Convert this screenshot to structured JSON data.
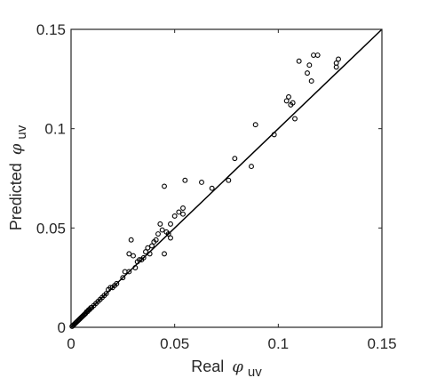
{
  "chart_data": {
    "type": "scatter",
    "title": "",
    "xlabel": {
      "prefix": "Real",
      "symbol": "φ",
      "subscript": "uv"
    },
    "ylabel": {
      "prefix": "Predicted",
      "symbol": "φ",
      "subscript": "uv"
    },
    "xlim": [
      0,
      0.15
    ],
    "ylim": [
      0,
      0.15
    ],
    "xticks": [
      0,
      0.05,
      0.1,
      0.15
    ],
    "yticks": [
      0,
      0.05,
      0.1,
      0.15
    ],
    "xtick_labels": [
      "0",
      "0.05",
      "0.1",
      "0.15"
    ],
    "ytick_labels": [
      "0",
      "0.05",
      "0.1",
      "0.15"
    ],
    "grid": false,
    "marker": "open-circle",
    "reference_line": {
      "from": [
        0,
        0
      ],
      "to": [
        0.15,
        0.15
      ]
    },
    "series": [
      {
        "points": [
          [
            0.0005,
            0.0005
          ],
          [
            0.001,
            0.001
          ],
          [
            0.0015,
            0.0015
          ],
          [
            0.002,
            0.002
          ],
          [
            0.0025,
            0.0025
          ],
          [
            0.003,
            0.003
          ],
          [
            0.0035,
            0.0035
          ],
          [
            0.004,
            0.004
          ],
          [
            0.0045,
            0.0045
          ],
          [
            0.005,
            0.005
          ],
          [
            0.0055,
            0.0055
          ],
          [
            0.006,
            0.006
          ],
          [
            0.0065,
            0.0065
          ],
          [
            0.007,
            0.007
          ],
          [
            0.0075,
            0.0078
          ],
          [
            0.008,
            0.008
          ],
          [
            0.0085,
            0.0088
          ],
          [
            0.009,
            0.009
          ],
          [
            0.0095,
            0.0098
          ],
          [
            0.01,
            0.01
          ],
          [
            0.011,
            0.011
          ],
          [
            0.012,
            0.012
          ],
          [
            0.013,
            0.013
          ],
          [
            0.014,
            0.014
          ],
          [
            0.015,
            0.015
          ],
          [
            0.016,
            0.016
          ],
          [
            0.017,
            0.017
          ],
          [
            0.018,
            0.019
          ],
          [
            0.019,
            0.02
          ],
          [
            0.02,
            0.02
          ],
          [
            0.021,
            0.021
          ],
          [
            0.022,
            0.022
          ],
          [
            0.025,
            0.025
          ],
          [
            0.026,
            0.028
          ],
          [
            0.028,
            0.028
          ],
          [
            0.028,
            0.037
          ],
          [
            0.029,
            0.044
          ],
          [
            0.03,
            0.036
          ],
          [
            0.031,
            0.03
          ],
          [
            0.032,
            0.033
          ],
          [
            0.033,
            0.034
          ],
          [
            0.034,
            0.034
          ],
          [
            0.035,
            0.035
          ],
          [
            0.036,
            0.038
          ],
          [
            0.037,
            0.04
          ],
          [
            0.038,
            0.037
          ],
          [
            0.039,
            0.041
          ],
          [
            0.04,
            0.043
          ],
          [
            0.041,
            0.044
          ],
          [
            0.042,
            0.047
          ],
          [
            0.043,
            0.052
          ],
          [
            0.044,
            0.049
          ],
          [
            0.045,
            0.071
          ],
          [
            0.045,
            0.037
          ],
          [
            0.046,
            0.048
          ],
          [
            0.047,
            0.047
          ],
          [
            0.048,
            0.045
          ],
          [
            0.048,
            0.052
          ],
          [
            0.05,
            0.056
          ],
          [
            0.052,
            0.058
          ],
          [
            0.054,
            0.06
          ],
          [
            0.054,
            0.057
          ],
          [
            0.055,
            0.074
          ],
          [
            0.063,
            0.073
          ],
          [
            0.068,
            0.07
          ],
          [
            0.076,
            0.074
          ],
          [
            0.079,
            0.085
          ],
          [
            0.087,
            0.081
          ],
          [
            0.089,
            0.102
          ],
          [
            0.098,
            0.097
          ],
          [
            0.104,
            0.114
          ],
          [
            0.105,
            0.116
          ],
          [
            0.106,
            0.112
          ],
          [
            0.107,
            0.113
          ],
          [
            0.108,
            0.105
          ],
          [
            0.11,
            0.134
          ],
          [
            0.114,
            0.128
          ],
          [
            0.115,
            0.132
          ],
          [
            0.116,
            0.124
          ],
          [
            0.117,
            0.137
          ],
          [
            0.119,
            0.137
          ],
          [
            0.128,
            0.131
          ],
          [
            0.128,
            0.133
          ],
          [
            0.129,
            0.135
          ]
        ]
      }
    ]
  }
}
